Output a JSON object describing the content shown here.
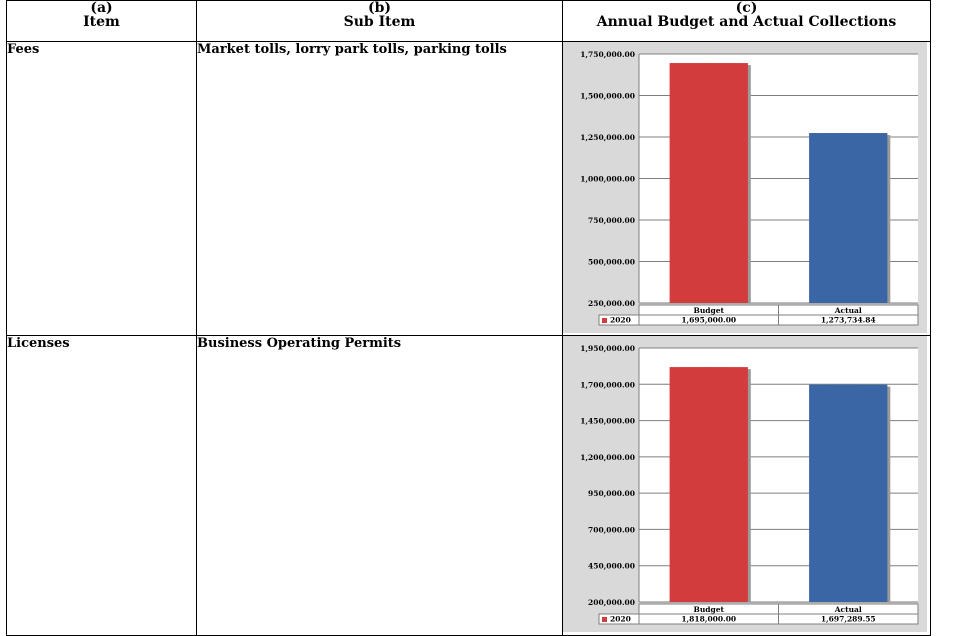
{
  "header": {
    "col_a_letter": "(a)",
    "col_a_name": "Item",
    "col_b_letter": "(b)",
    "col_b_name": "Sub Item",
    "col_c_letter": "(c)",
    "col_c_name": "Annual Budget and Actual Collections"
  },
  "rows": [
    {
      "item": "Fees",
      "sub_item": "Market tolls, lorry park tolls, parking tolls"
    },
    {
      "item": "Licenses",
      "sub_item": "Business Operating Permits"
    }
  ],
  "chart_data": [
    {
      "type": "bar",
      "categories": [
        "Budget",
        "Actual"
      ],
      "series": [
        {
          "name": "2020",
          "values": [
            1695000.0,
            1273734.84
          ],
          "colors": [
            "#d33c3c",
            "#3b66a5"
          ]
        }
      ],
      "value_labels": [
        "1,695,000.00",
        "1,273,734.84"
      ],
      "legend_label": "2020",
      "ylim": [
        250000,
        1750000
      ],
      "yticks": [
        "1,750,000.00",
        "1,500,000.00",
        "1,250,000.00",
        "1,000,000.00",
        "750,000.00",
        "500,000.00",
        "250,000.00"
      ],
      "grid": true,
      "legend": "data-table"
    },
    {
      "type": "bar",
      "categories": [
        "Budget",
        "Actual"
      ],
      "series": [
        {
          "name": "2020",
          "values": [
            1818000.0,
            1697289.55
          ],
          "colors": [
            "#d33c3c",
            "#3b66a5"
          ]
        }
      ],
      "value_labels": [
        "1,818,000.00",
        "1,697,289.55"
      ],
      "legend_label": "2020",
      "ylim": [
        200000,
        1950000
      ],
      "yticks": [
        "1,950,000.00",
        "1,700,000.00",
        "1,450,000.00",
        "1,200,000.00",
        "950,000.00",
        "700,000.00",
        "450,000.00",
        "200,000.00"
      ],
      "grid": true,
      "legend": "data-table"
    }
  ]
}
